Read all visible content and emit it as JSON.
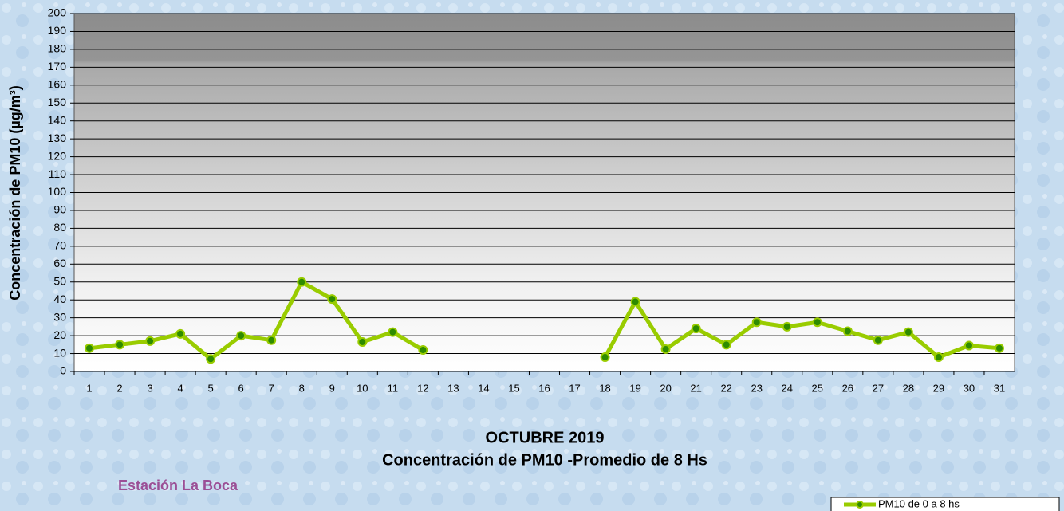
{
  "chart_data": {
    "type": "line",
    "title": "OCTUBRE 2019",
    "subtitle": "Concentración de PM10 -Promedio de 8 Hs",
    "ylabel": "Concentración de PM10 (µg/m³)",
    "station": "Estación  La Boca",
    "categories": [
      "1",
      "2",
      "3",
      "4",
      "5",
      "6",
      "7",
      "8",
      "9",
      "10",
      "11",
      "12",
      "13",
      "14",
      "15",
      "16",
      "17",
      "18",
      "19",
      "20",
      "21",
      "22",
      "23",
      "24",
      "25",
      "26",
      "27",
      "28",
      "29",
      "30",
      "31"
    ],
    "series": [
      {
        "name": "PM10 de 0 a 8 hs",
        "color": "#99cc00",
        "values": [
          13,
          15,
          17,
          21,
          7,
          20,
          17.5,
          50,
          40.5,
          16.5,
          22,
          12,
          null,
          null,
          null,
          null,
          null,
          8,
          39,
          12.5,
          24,
          15,
          27.5,
          25,
          27.5,
          22.5,
          17.5,
          22,
          8,
          14.5,
          13
        ]
      }
    ],
    "ylim": [
      0,
      200
    ],
    "yticks": [
      0,
      10,
      20,
      30,
      40,
      50,
      60,
      70,
      80,
      90,
      100,
      110,
      120,
      130,
      140,
      150,
      160,
      170,
      180,
      190,
      200
    ],
    "grid": true,
    "legend": "bottom-right"
  }
}
